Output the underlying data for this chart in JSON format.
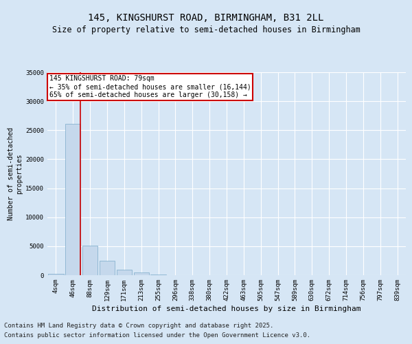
{
  "title1": "145, KINGSHURST ROAD, BIRMINGHAM, B31 2LL",
  "title2": "Size of property relative to semi-detached houses in Birmingham",
  "xlabel": "Distribution of semi-detached houses by size in Birmingham",
  "ylabel": "Number of semi-detached\nproperties",
  "categories": [
    "4sqm",
    "46sqm",
    "88sqm",
    "129sqm",
    "171sqm",
    "213sqm",
    "255sqm",
    "296sqm",
    "338sqm",
    "380sqm",
    "422sqm",
    "463sqm",
    "505sqm",
    "547sqm",
    "589sqm",
    "630sqm",
    "672sqm",
    "714sqm",
    "756sqm",
    "797sqm",
    "839sqm"
  ],
  "values": [
    200,
    26100,
    5100,
    2500,
    1000,
    500,
    150,
    50,
    20,
    10,
    5,
    3,
    2,
    1,
    1,
    0,
    0,
    0,
    0,
    0,
    0
  ],
  "bar_color": "#c5d8ec",
  "bar_edge_color": "#7aaac8",
  "vline_x_index": 1,
  "annotation_title": "145 KINGSHURST ROAD: 79sqm",
  "annotation_line1": "← 35% of semi-detached houses are smaller (16,144)",
  "annotation_line2": "65% of semi-detached houses are larger (30,158) →",
  "annotation_box_color": "#ffffff",
  "annotation_box_edge": "#cc0000",
  "vline_color": "#cc0000",
  "ylim": [
    0,
    35000
  ],
  "yticks": [
    0,
    5000,
    10000,
    15000,
    20000,
    25000,
    30000,
    35000
  ],
  "background_color": "#d6e6f5",
  "plot_bg_color": "#d6e6f5",
  "grid_color": "#ffffff",
  "footer1": "Contains HM Land Registry data © Crown copyright and database right 2025.",
  "footer2": "Contains public sector information licensed under the Open Government Licence v3.0.",
  "title1_fontsize": 10,
  "title2_fontsize": 8.5,
  "xlabel_fontsize": 8,
  "ylabel_fontsize": 7,
  "tick_fontsize": 6.5,
  "footer_fontsize": 6.5,
  "annotation_fontsize": 7
}
